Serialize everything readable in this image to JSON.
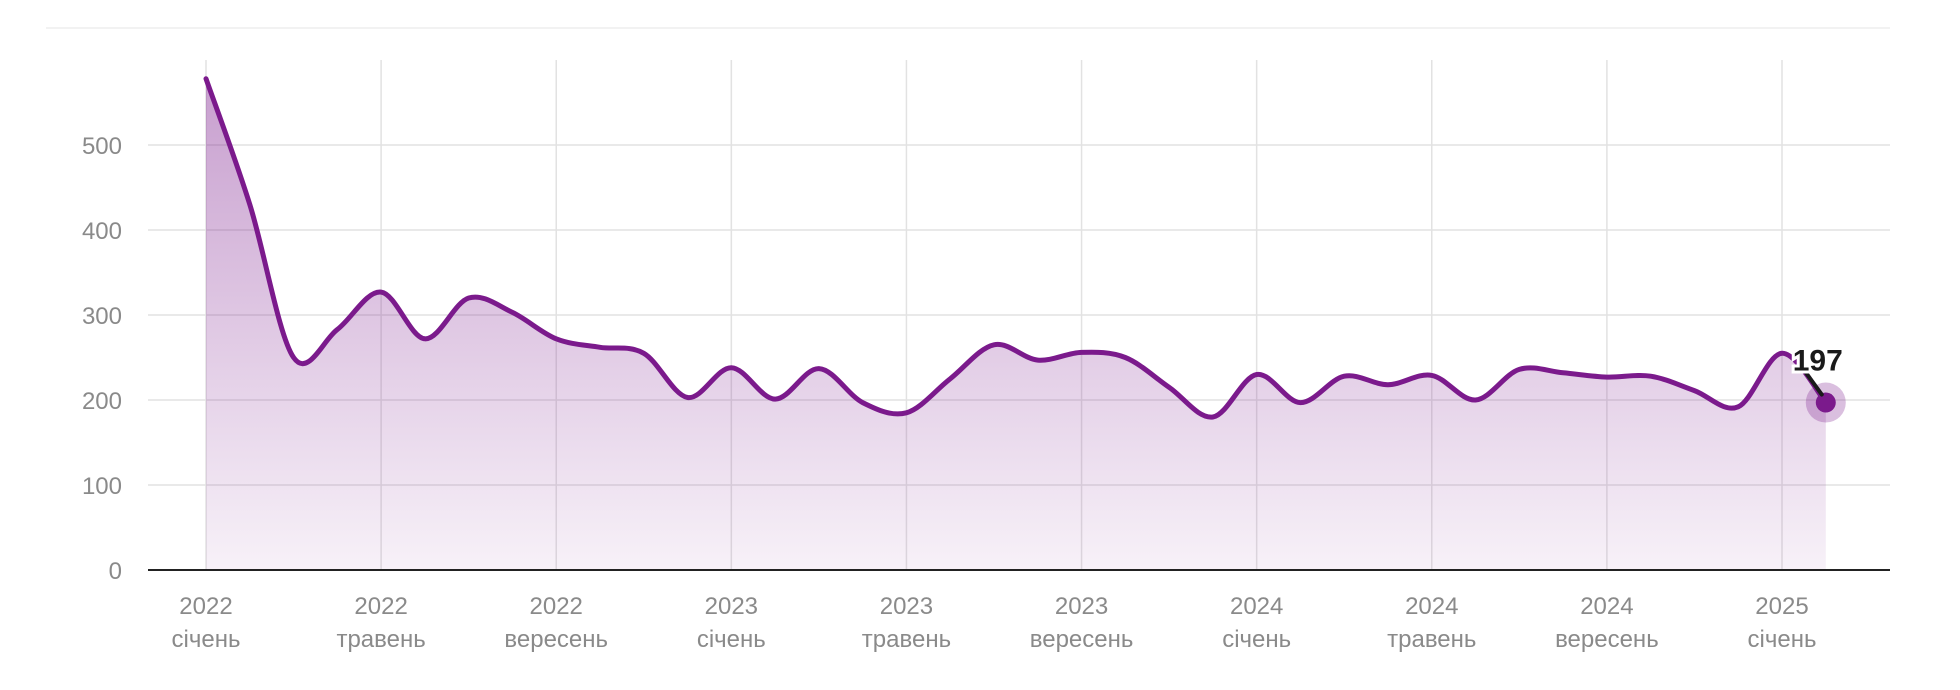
{
  "chart_data": {
    "type": "area",
    "title": "",
    "xlabel": "",
    "ylabel": "",
    "ylim": [
      0,
      580
    ],
    "y_ticks": [
      0,
      100,
      200,
      300,
      400,
      500
    ],
    "grid": true,
    "x_ticks": [
      {
        "date": "2022-01",
        "year": "2022",
        "month": "січень"
      },
      {
        "date": "2022-05",
        "year": "2022",
        "month": "травень"
      },
      {
        "date": "2022-09",
        "year": "2022",
        "month": "вересень"
      },
      {
        "date": "2023-01",
        "year": "2023",
        "month": "січень"
      },
      {
        "date": "2023-05",
        "year": "2023",
        "month": "травень"
      },
      {
        "date": "2023-09",
        "year": "2023",
        "month": "вересень"
      },
      {
        "date": "2024-01",
        "year": "2024",
        "month": "січень"
      },
      {
        "date": "2024-05",
        "year": "2024",
        "month": "травень"
      },
      {
        "date": "2024-09",
        "year": "2024",
        "month": "вересень"
      },
      {
        "date": "2025-01",
        "year": "2025",
        "month": "січень"
      }
    ],
    "series": [
      {
        "color": "#7b1a8c",
        "points": [
          {
            "date": "2022-01",
            "value": 578
          },
          {
            "date": "2022-02",
            "value": 430
          },
          {
            "date": "2022-03",
            "value": 250
          },
          {
            "date": "2022-04",
            "value": 283
          },
          {
            "date": "2022-05",
            "value": 327
          },
          {
            "date": "2022-06",
            "value": 272
          },
          {
            "date": "2022-07",
            "value": 320
          },
          {
            "date": "2022-08",
            "value": 303
          },
          {
            "date": "2022-09",
            "value": 272
          },
          {
            "date": "2022-10",
            "value": 262
          },
          {
            "date": "2022-11",
            "value": 255
          },
          {
            "date": "2022-12",
            "value": 203
          },
          {
            "date": "2023-01",
            "value": 238
          },
          {
            "date": "2023-02",
            "value": 201
          },
          {
            "date": "2023-03",
            "value": 237
          },
          {
            "date": "2023-04",
            "value": 197
          },
          {
            "date": "2023-05",
            "value": 185
          },
          {
            "date": "2023-06",
            "value": 225
          },
          {
            "date": "2023-07",
            "value": 265
          },
          {
            "date": "2023-08",
            "value": 247
          },
          {
            "date": "2023-09",
            "value": 256
          },
          {
            "date": "2023-10",
            "value": 250
          },
          {
            "date": "2023-11",
            "value": 215
          },
          {
            "date": "2023-12",
            "value": 180
          },
          {
            "date": "2024-01",
            "value": 230
          },
          {
            "date": "2024-02",
            "value": 197
          },
          {
            "date": "2024-03",
            "value": 228
          },
          {
            "date": "2024-04",
            "value": 218
          },
          {
            "date": "2024-05",
            "value": 229
          },
          {
            "date": "2024-06",
            "value": 200
          },
          {
            "date": "2024-07",
            "value": 236
          },
          {
            "date": "2024-08",
            "value": 232
          },
          {
            "date": "2024-09",
            "value": 227
          },
          {
            "date": "2024-10",
            "value": 228
          },
          {
            "date": "2024-11",
            "value": 211
          },
          {
            "date": "2024-12",
            "value": 192
          },
          {
            "date": "2025-01",
            "value": 255
          },
          {
            "date": "2025-02",
            "value": 197
          }
        ]
      }
    ],
    "last_value_label": "197"
  }
}
